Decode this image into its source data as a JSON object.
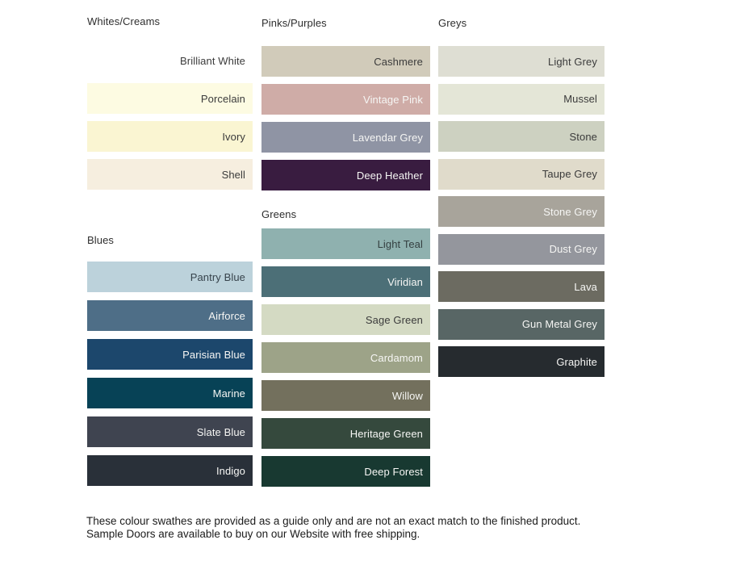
{
  "palette": {
    "columns": [
      {
        "groups": [
          {
            "header": "Whites/Creams",
            "swatches": [
              {
                "label": "Brilliant White",
                "color": "#FFFFFF",
                "text_color": "#3B3B3B"
              },
              {
                "label": "Porcelain",
                "color": "#FDFBE2",
                "text_color": "#3B3B3B"
              },
              {
                "label": "Ivory",
                "color": "#FAF5D2",
                "text_color": "#3B3B3B"
              },
              {
                "label": "Shell",
                "color": "#F6EEDF",
                "text_color": "#3B3B3B"
              }
            ]
          },
          {
            "header": "Blues",
            "swatches": [
              {
                "label": "Pantry Blue",
                "color": "#BCD2DB",
                "text_color": "#37434C"
              },
              {
                "label": "Airforce",
                "color": "#4E6E87",
                "text_color": "#F6F6F4"
              },
              {
                "label": "Parisian Blue",
                "color": "#1C476C",
                "text_color": "#F6F6F4"
              },
              {
                "label": "Marine",
                "color": "#074256",
                "text_color": "#F6F6F4"
              },
              {
                "label": "Slate Blue",
                "color": "#3F4450",
                "text_color": "#F6F6F4"
              },
              {
                "label": "Indigo",
                "color": "#293039",
                "text_color": "#F6F6F4"
              }
            ]
          }
        ]
      },
      {
        "groups": [
          {
            "header": "Pinks/Purples",
            "swatches": [
              {
                "label": "Cashmere",
                "color": "#D1CBBA",
                "text_color": "#3B3B3B"
              },
              {
                "label": "Vintage Pink",
                "color": "#CFACA7",
                "text_color": "#F6F6F4"
              },
              {
                "label": "Lavendar Grey",
                "color": "#8F94A4",
                "text_color": "#F6F6F4"
              },
              {
                "label": "Deep Heather",
                "color": "#391C40",
                "text_color": "#F6F6F4"
              }
            ]
          },
          {
            "header": "Greens",
            "swatches": [
              {
                "label": "Light Teal",
                "color": "#8FB1AF",
                "text_color": "#343F40"
              },
              {
                "label": "Viridian",
                "color": "#4C6F77",
                "text_color": "#F6F6F4"
              },
              {
                "label": "Sage Green",
                "color": "#D4DAC3",
                "text_color": "#3B3B3B"
              },
              {
                "label": "Cardamom",
                "color": "#9DA388",
                "text_color": "#F6F6F4"
              },
              {
                "label": "Willow",
                "color": "#73705D",
                "text_color": "#F6F6F4"
              },
              {
                "label": "Heritage Green",
                "color": "#35493D",
                "text_color": "#F6F6F4"
              },
              {
                "label": "Deep Forest",
                "color": "#183931",
                "text_color": "#F6F6F4"
              }
            ]
          }
        ]
      },
      {
        "groups": [
          {
            "header": "Greys",
            "swatches": [
              {
                "label": "Light Grey",
                "color": "#DEDED3",
                "text_color": "#3B3B3B"
              },
              {
                "label": "Mussel",
                "color": "#E4E6D7",
                "text_color": "#3B3B3B"
              },
              {
                "label": "Stone",
                "color": "#CDD1C1",
                "text_color": "#3B3B3B"
              },
              {
                "label": "Taupe Grey",
                "color": "#E0DBCB",
                "text_color": "#3B3B3B"
              },
              {
                "label": "Stone Grey",
                "color": "#A8A49B",
                "text_color": "#F6F6F4"
              },
              {
                "label": "Dust Grey",
                "color": "#94969D",
                "text_color": "#F6F6F4"
              },
              {
                "label": "Lava",
                "color": "#6C6B61",
                "text_color": "#F6F6F4"
              },
              {
                "label": "Gun Metal Grey",
                "color": "#586665",
                "text_color": "#F6F6F4"
              },
              {
                "label": "Graphite",
                "color": "#262B2F",
                "text_color": "#F6F6F4"
              }
            ]
          }
        ]
      }
    ]
  },
  "footer": {
    "text": "These colour swathes are provided as a guide only and are not an exact match to the finished product.  Sample Doors are available to buy on our Website with free shipping."
  }
}
